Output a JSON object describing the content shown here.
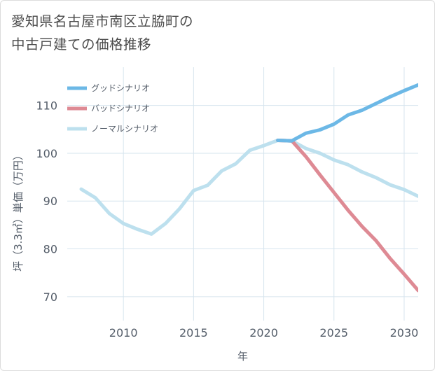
{
  "title_line1": "愛知県名古屋市南区立脇町の",
  "title_line2": "中古戸建ての価格推移",
  "chart_data": {
    "type": "line",
    "title": "愛知県名古屋市南区立脇町の中古戸建ての価格推移",
    "xlabel": "年",
    "ylabel": "坪（3.3㎡）単価（万円）",
    "xlim": [
      2006,
      2031
    ],
    "ylim": [
      65,
      118
    ],
    "xticks": [
      2010,
      2015,
      2020,
      2025,
      2030
    ],
    "yticks": [
      70,
      80,
      90,
      100,
      110
    ],
    "grid": true,
    "legend_position": "top-left",
    "series": [
      {
        "name": "グッドシナリオ",
        "color": "#6cb8e6",
        "points": [
          [
            2021,
            102.7
          ],
          [
            2022,
            102.6
          ],
          [
            2023,
            104.2
          ],
          [
            2024,
            104.9
          ],
          [
            2025,
            106.1
          ],
          [
            2026,
            108.0
          ],
          [
            2027,
            109.0
          ],
          [
            2028,
            110.4
          ],
          [
            2029,
            111.8
          ],
          [
            2030,
            113.1
          ],
          [
            2031,
            114.3
          ]
        ]
      },
      {
        "name": "バッドシナリオ",
        "color": "#de8a94",
        "points": [
          [
            2021,
            102.7
          ],
          [
            2022,
            102.6
          ],
          [
            2023,
            99.3
          ],
          [
            2024,
            95.5
          ],
          [
            2025,
            91.8
          ],
          [
            2026,
            88.1
          ],
          [
            2027,
            84.7
          ],
          [
            2028,
            81.7
          ],
          [
            2029,
            78.0
          ],
          [
            2030,
            74.7
          ],
          [
            2031,
            71.3
          ]
        ]
      },
      {
        "name": "ノーマルシナリオ",
        "color": "#bde0ee",
        "points": [
          [
            2007,
            92.5
          ],
          [
            2008,
            90.7
          ],
          [
            2009,
            87.4
          ],
          [
            2010,
            85.3
          ],
          [
            2011,
            84.1
          ],
          [
            2012,
            83.1
          ],
          [
            2013,
            85.3
          ],
          [
            2014,
            88.4
          ],
          [
            2015,
            92.2
          ],
          [
            2016,
            93.3
          ],
          [
            2017,
            96.3
          ],
          [
            2018,
            97.8
          ],
          [
            2019,
            100.6
          ],
          [
            2020,
            101.6
          ],
          [
            2021,
            102.7
          ],
          [
            2022,
            102.6
          ],
          [
            2023,
            101.0
          ],
          [
            2024,
            100.0
          ],
          [
            2025,
            98.6
          ],
          [
            2026,
            97.6
          ],
          [
            2027,
            96.1
          ],
          [
            2028,
            94.9
          ],
          [
            2029,
            93.4
          ],
          [
            2030,
            92.4
          ],
          [
            2031,
            91.0
          ]
        ]
      }
    ]
  }
}
